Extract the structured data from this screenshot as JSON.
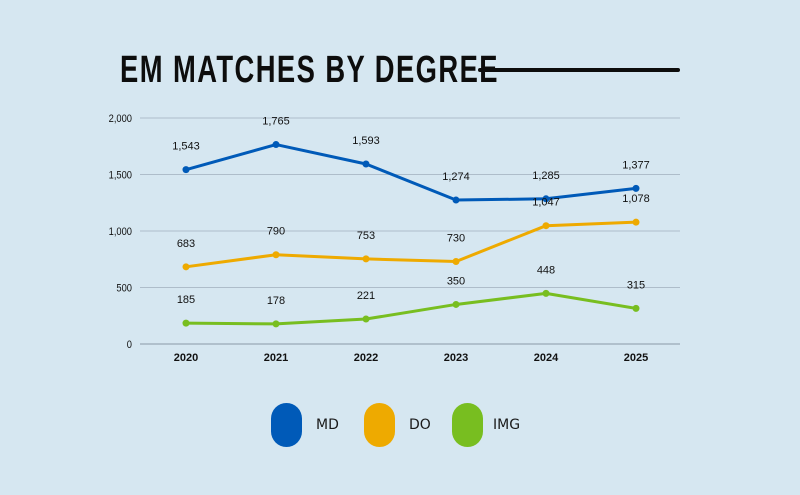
{
  "chart_data": {
    "type": "line",
    "title": "EM MATCHES BY DEGREE",
    "categories": [
      "2020",
      "2021",
      "2022",
      "2023",
      "2024",
      "2025"
    ],
    "series": [
      {
        "name": "MD",
        "color": "#005ab8",
        "values": [
          1543,
          1765,
          1593,
          1274,
          1285,
          1377
        ],
        "labels": [
          "1,543",
          "1,765",
          "1,593",
          "1,274",
          "1,285",
          "1,377"
        ]
      },
      {
        "name": "DO",
        "color": "#eeaa00",
        "values": [
          683,
          790,
          753,
          730,
          1047,
          1078
        ],
        "labels": [
          "683",
          "790",
          "753",
          "730",
          "1,047",
          "1,078"
        ]
      },
      {
        "name": "IMG",
        "color": "#78be20",
        "values": [
          185,
          178,
          221,
          350,
          448,
          315
        ],
        "labels": [
          "185",
          "178",
          "221",
          "350",
          "448",
          "315"
        ]
      }
    ],
    "ylim": [
      0,
      2000
    ],
    "yticks": [
      0,
      500,
      1000,
      1500,
      2000
    ],
    "ytick_labels": [
      "0",
      "500",
      "1,000",
      "1,500",
      "2,000"
    ],
    "xlabel": "",
    "ylabel": "",
    "grid": true,
    "legend_position": "bottom"
  }
}
